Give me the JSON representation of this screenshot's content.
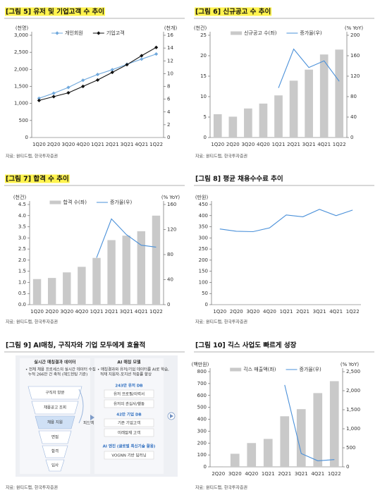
{
  "chart_data": [
    {
      "type": "line",
      "title": "[그림 5] 유저 및 기업고객 수 추이",
      "highlight": true,
      "ylabel": "(천명)",
      "y2label": "(천개)",
      "categories": [
        "1Q20",
        "2Q20",
        "3Q20",
        "4Q20",
        "1Q21",
        "2Q21",
        "3Q21",
        "4Q21",
        "1Q22"
      ],
      "series": [
        {
          "name": "개인회원",
          "color": "#6fa8dc",
          "marker": "diamond",
          "values": [
            1150,
            1300,
            1470,
            1680,
            1850,
            1990,
            2150,
            2300,
            2450
          ]
        },
        {
          "name": "기업고객",
          "color": "#111111",
          "marker": "diamond",
          "axis": "y2",
          "values": [
            5.8,
            6.4,
            7.0,
            8.0,
            9.0,
            10.2,
            11.4,
            12.8,
            14.1
          ]
        }
      ],
      "ylim": [
        0,
        3000
      ],
      "yticks": [
        0,
        500,
        {
          "value": 1000,
          "label": "1,000"
        },
        {
          "value": 1500,
          "label": "1,500"
        },
        {
          "value": 2000,
          "label": "2,000"
        },
        {
          "value": 2500,
          "label": "2,500"
        },
        {
          "value": 3000,
          "label": "3,000"
        }
      ],
      "y2lim": [
        0,
        16
      ],
      "y2ticks": [
        0,
        2,
        4,
        6,
        8,
        10,
        12,
        14,
        16
      ],
      "legend": "top",
      "source": "자료: 원티드랩, 한국투자증권"
    },
    {
      "type": "combo",
      "title": "[그림 6] 신규공고 수 추이",
      "highlight": true,
      "ylabel": "(천건)",
      "y2label": "(% YoY)",
      "categories": [
        "1Q20",
        "2Q20",
        "3Q20",
        "4Q20",
        "1Q21",
        "2Q21",
        "3Q21",
        "4Q21",
        "1Q22"
      ],
      "series": [
        {
          "name": "신규공고 수(좌)",
          "type": "bar",
          "color": "#c9c9c9",
          "values": [
            5.7,
            5.1,
            7.1,
            8.3,
            10.3,
            13.9,
            16.6,
            20.3,
            21.5
          ]
        },
        {
          "name": "증가율(우)",
          "type": "line",
          "color": "#4a90d9",
          "axis": "y2",
          "values": [
            null,
            null,
            null,
            null,
            97,
            173,
            137,
            150,
            110
          ]
        }
      ],
      "ylim": [
        0,
        25
      ],
      "yticks": [
        0,
        5,
        10,
        15,
        20,
        25
      ],
      "y2lim": [
        0,
        200
      ],
      "y2ticks": [
        0,
        40,
        80,
        120,
        160,
        200
      ],
      "legend": "top",
      "source": "자료: 원티드랩, 한국투자증권"
    },
    {
      "type": "combo",
      "title": "[그림 7] 합격 수 추이",
      "highlight": true,
      "ylabel": "(천건)",
      "y2label": "(% YoY)",
      "categories": [
        "1Q20",
        "2Q20",
        "3Q20",
        "4Q20",
        "1Q21",
        "2Q21",
        "3Q21",
        "4Q21",
        "1Q22"
      ],
      "series": [
        {
          "name": "합격 수(좌)",
          "type": "bar",
          "color": "#c9c9c9",
          "values": [
            1.15,
            1.2,
            1.45,
            1.7,
            2.1,
            2.9,
            3.1,
            3.3,
            4.0
          ]
        },
        {
          "name": "증가율(우)",
          "type": "line",
          "color": "#4a90d9",
          "axis": "y2",
          "values": [
            null,
            null,
            null,
            null,
            75,
            137,
            112,
            95,
            92
          ]
        }
      ],
      "ylim": [
        0,
        4.5
      ],
      "yticks": [
        {
          "value": 0,
          "label": "0.0"
        },
        0.5,
        {
          "value": 1,
          "label": "1.0"
        },
        1.5,
        {
          "value": 2,
          "label": "2.0"
        },
        2.5,
        {
          "value": 3,
          "label": "3.0"
        },
        3.5,
        {
          "value": 4,
          "label": "4.0"
        },
        4.5
      ],
      "y2lim": [
        0,
        160
      ],
      "y2ticks": [
        0,
        40,
        80,
        120,
        160
      ],
      "legend": "top",
      "source": "자료: 원티드랩, 한국투자증권"
    },
    {
      "type": "line",
      "title": "[그림 8] 평균 채용수수료 추이",
      "highlight": false,
      "ylabel": "(만원)",
      "categories": [
        "1Q20",
        "2Q20",
        "3Q20",
        "4Q20",
        "1Q21",
        "2Q21",
        "3Q21",
        "4Q21",
        "1Q22"
      ],
      "series": [
        {
          "color": "#4a90d9",
          "values": [
            340,
            330,
            328,
            345,
            403,
            395,
            428,
            400,
            425
          ]
        }
      ],
      "ylim": [
        0,
        450
      ],
      "yticks": [
        0,
        50,
        100,
        150,
        200,
        250,
        300,
        350,
        400,
        450
      ],
      "source": "자료: 원티드랩, 한국투자증권"
    },
    {
      "type": "combo",
      "title": "[그림 10] 긱스 사업도 빠르게 성장",
      "highlight": false,
      "ylabel": "(백만원)",
      "y2label": "(% YoY)",
      "categories": [
        "2Q20",
        "3Q20",
        "4Q20",
        "1Q21",
        "2Q21",
        "3Q21",
        "4Q21",
        "1Q22"
      ],
      "series": [
        {
          "name": "긱스 매출액(좌)",
          "type": "bar",
          "color": "#c9c9c9",
          "values": [
            5,
            110,
            200,
            235,
            425,
            485,
            620,
            720
          ]
        },
        {
          "name": "증가율(우)",
          "type": "line",
          "color": "#4a90d9",
          "axis": "y2",
          "values": [
            null,
            null,
            null,
            null,
            2150,
            350,
            160,
            190
          ]
        }
      ],
      "ylim": [
        0,
        800
      ],
      "yticks": [
        0,
        100,
        200,
        300,
        400,
        500,
        600,
        700,
        800
      ],
      "y2lim": [
        0,
        2500
      ],
      "y2ticks": [
        0,
        500,
        {
          "value": 1000,
          "label": "1,000"
        },
        {
          "value": 1500,
          "label": "1,500"
        },
        {
          "value": 2000,
          "label": "2,000"
        },
        {
          "value": 2500,
          "label": "2,500"
        }
      ],
      "legend": "top",
      "source": "자료: 원티드랩, 한국투자증권"
    }
  ],
  "diagram": {
    "title": "[그림 9] AI매칭, 구직자와 기업 모두에게 효율적",
    "left_title": "실시간 매칭결과 데이터",
    "left_note": [
      "• 전체 채용 프로세스의 실시간 데이터 수집",
      "누적 266만 건 축적 (헤드헌팅 기준)"
    ],
    "funnel": [
      "구직자 방문",
      "채용공고 조회",
      "채용 지원",
      "면접",
      "합격",
      "입사"
    ],
    "feedback": "피드백",
    "right_title": "AI 매칭 모델",
    "right_note": [
      "• 매칭결과와 유저/기업 데이터를 AI로 학습,",
      "적재 지원자-포지션 적중률 향상"
    ],
    "user_db": "243만 유저 DB",
    "user_items": [
      "유저 프로필/이력서",
      "유저의 관심사/행동"
    ],
    "company_db": "42만 기업 DB",
    "company_items": [
      "기존 기업고객",
      "미래잠재 고객"
    ],
    "engine": "AI 엔진 (글로벌 최신기술 활용)",
    "engine_items": [
      "VOGNN 기반 딥러닝"
    ],
    "source": "자료: 원티드랩, 한국투자증권"
  }
}
